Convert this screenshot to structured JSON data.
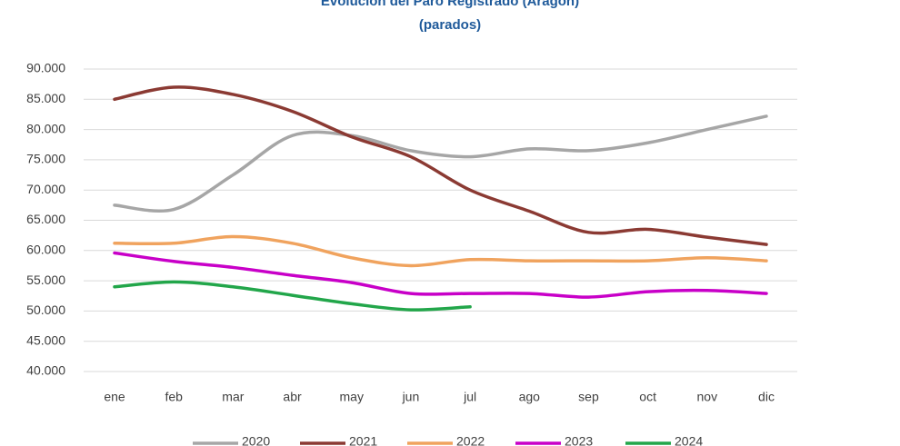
{
  "chart_data": {
    "type": "line",
    "title": "Evolución del Paro Registrado (Aragón)",
    "subtitle": "(parados)",
    "categories": [
      "ene",
      "feb",
      "mar",
      "abr",
      "may",
      "jun",
      "jul",
      "ago",
      "sep",
      "oct",
      "nov",
      "dic"
    ],
    "series": [
      {
        "name": "2020",
        "color": "#a6a6a6",
        "values": [
          67500,
          66800,
          72500,
          79000,
          79000,
          76500,
          75500,
          76800,
          76500,
          77800,
          80000,
          82200
        ]
      },
      {
        "name": "2021",
        "color": "#8b3a33",
        "values": [
          85000,
          87000,
          85800,
          83000,
          78800,
          75500,
          70000,
          66500,
          63000,
          63500,
          62200,
          61000
        ]
      },
      {
        "name": "2022",
        "color": "#f0a35e",
        "values": [
          61200,
          61200,
          62300,
          61200,
          58800,
          57500,
          58500,
          58300,
          58300,
          58300,
          58800,
          58300
        ]
      },
      {
        "name": "2023",
        "color": "#c800c8",
        "values": [
          59600,
          58200,
          57200,
          55900,
          54700,
          52900,
          52900,
          52900,
          52300,
          53200,
          53400,
          52900
        ]
      },
      {
        "name": "2024",
        "color": "#22a64a",
        "values": [
          54000,
          54800,
          54000,
          52600,
          51200,
          50200,
          50700,
          null,
          null,
          null,
          null,
          null
        ]
      }
    ],
    "ylim": [
      40000,
      90000
    ],
    "yticks": [
      {
        "value": 40000,
        "label": "40.000"
      },
      {
        "value": 45000,
        "label": "45.000"
      },
      {
        "value": 50000,
        "label": "50.000"
      },
      {
        "value": 55000,
        "label": "55.000"
      },
      {
        "value": 60000,
        "label": "60.000"
      },
      {
        "value": 65000,
        "label": "65.000"
      },
      {
        "value": 70000,
        "label": "70.000"
      },
      {
        "value": 75000,
        "label": "75.000"
      },
      {
        "value": 80000,
        "label": "80.000"
      },
      {
        "value": 85000,
        "label": "85.000"
      },
      {
        "value": 90000,
        "label": "90.000"
      }
    ],
    "grid": true,
    "legend": "bottom"
  }
}
